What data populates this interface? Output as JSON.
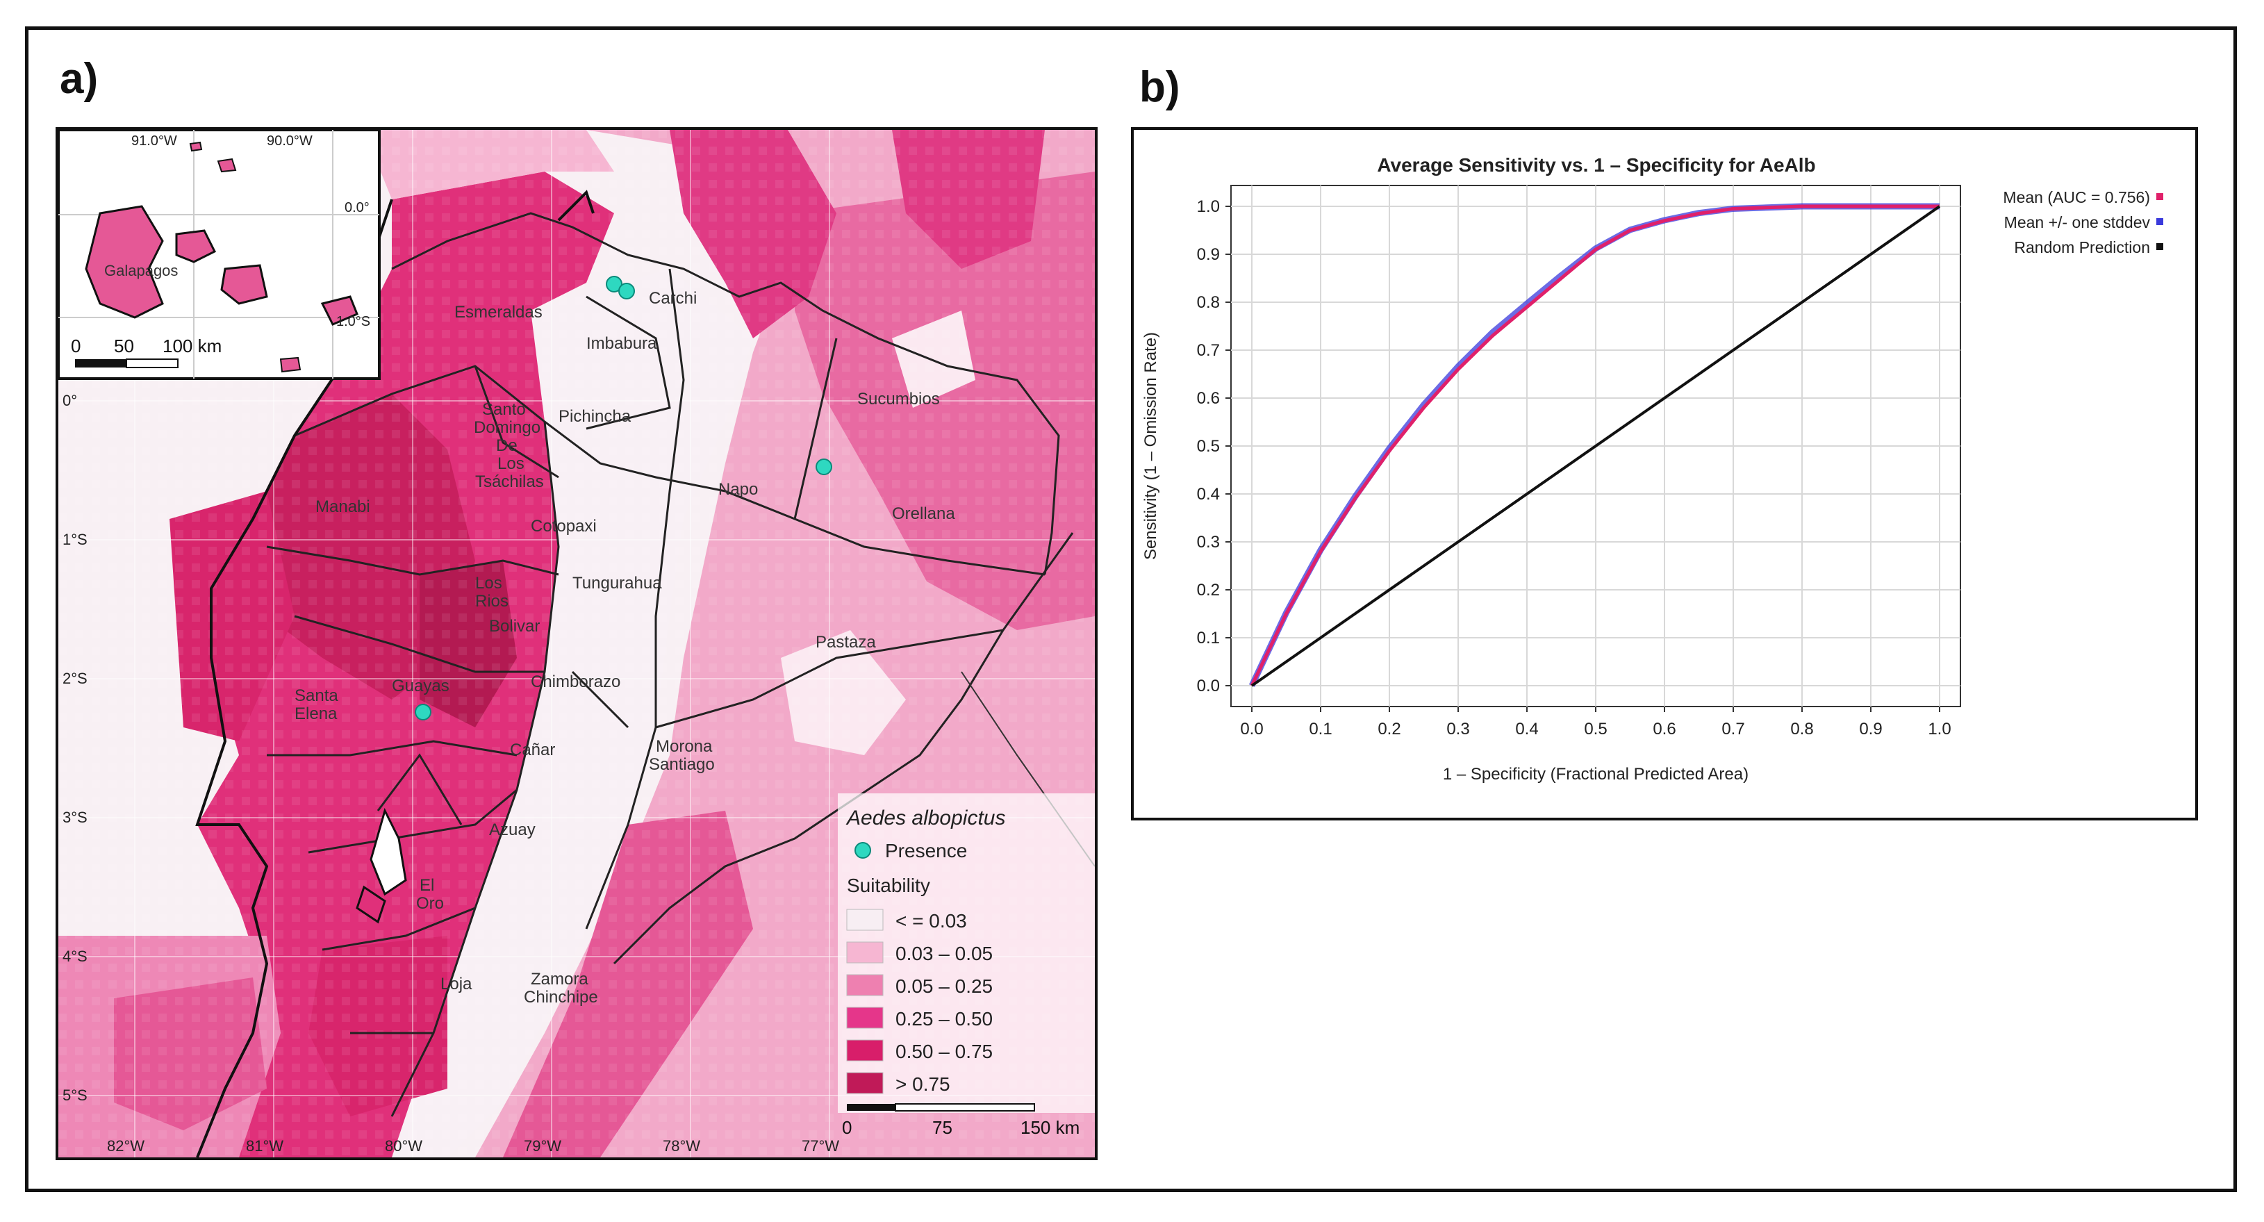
{
  "panels": {
    "a_label": "a)",
    "b_label": "b)"
  },
  "map": {
    "inset": {
      "lon_labels": [
        "91.0°W",
        "90.0°W"
      ],
      "lat_labels": [
        "0.0°",
        "1.0°S"
      ],
      "place": "Galapagos",
      "scale": [
        "0",
        "50",
        "100 km"
      ]
    },
    "lat_labels": [
      "0°",
      "1°S",
      "2°S",
      "3°S",
      "4°S",
      "5°S"
    ],
    "lon_labels": [
      "82°W",
      "81°W",
      "80°W",
      "79°W",
      "78°W",
      "77°W"
    ],
    "provinces": [
      "Esmeraldas",
      "Carchi",
      "Imbabura",
      "Sucumbios",
      "Pichincha",
      "Santo",
      "Domingo",
      "De",
      "Los",
      "Tsáchilas",
      "Manabi",
      "Napo",
      "Orellana",
      "Cotopaxi",
      "Tungurahua",
      "Los",
      "Rios",
      "Bolivar",
      "Pastaza",
      "Santa",
      "Elena",
      "Guayas",
      "Chimborazo",
      "Cañar",
      "Morona",
      "Santiago",
      "Azuay",
      "El",
      "Oro",
      "Loja",
      "Zamora",
      "Chinchipe"
    ],
    "legend": {
      "species": "Aedes albopictus",
      "presence_label": "Presence",
      "suitability_title": "Suitability",
      "classes": [
        {
          "label": "< = 0.03",
          "color": "#f7eef3"
        },
        {
          "label": "0.03  –  0.05",
          "color": "#f6b6d2"
        },
        {
          "label": "0.05  –  0.25",
          "color": "#ee80b0"
        },
        {
          "label": "0.25  –  0.50",
          "color": "#e5368a"
        },
        {
          "label": "0.50  –  0.75",
          "color": "#d81e6a"
        },
        {
          "label": "> 0.75",
          "color": "#c01a58"
        }
      ],
      "presence_color": "#2ed8c0"
    },
    "scale": [
      "0",
      "75",
      "150 km"
    ]
  },
  "chart_data": {
    "type": "line",
    "title": "Average Sensitivity vs. 1 – Specificity for AeAlb",
    "xlabel": "1 – Specificity (Fractional Predicted Area)",
    "ylabel": "Sensitivity (1 – Omission Rate)",
    "xlim": [
      0,
      1
    ],
    "ylim": [
      0,
      1
    ],
    "x_ticks": [
      "0.0",
      "0.1",
      "0.2",
      "0.3",
      "0.4",
      "0.5",
      "0.6",
      "0.7",
      "0.8",
      "0.9",
      "1.0"
    ],
    "y_ticks": [
      "0.0",
      "0.1",
      "0.2",
      "0.3",
      "0.4",
      "0.5",
      "0.6",
      "0.7",
      "0.8",
      "0.9",
      "1.0"
    ],
    "grid": true,
    "legend_position": "right",
    "series": [
      {
        "name": "Mean (AUC = 0.756)",
        "color": "#e0206a",
        "x": [
          0,
          0.05,
          0.1,
          0.15,
          0.2,
          0.25,
          0.3,
          0.35,
          0.4,
          0.45,
          0.5,
          0.55,
          0.6,
          0.65,
          0.7,
          0.8,
          0.9,
          1.0
        ],
        "y": [
          0,
          0.15,
          0.28,
          0.39,
          0.49,
          0.58,
          0.66,
          0.73,
          0.79,
          0.85,
          0.91,
          0.95,
          0.97,
          0.985,
          0.995,
          1.0,
          1.0,
          1.0
        ]
      },
      {
        "name": "Mean +/- one stddev",
        "color": "#3a3adc",
        "x": [
          0,
          0.05,
          0.1,
          0.15,
          0.2,
          0.25,
          0.3,
          0.35,
          0.4,
          0.45,
          0.5,
          0.55,
          0.6,
          0.65,
          0.7,
          0.8,
          0.9,
          1.0
        ],
        "y": [
          0,
          0.152,
          0.283,
          0.394,
          0.495,
          0.586,
          0.666,
          0.737,
          0.797,
          0.856,
          0.912,
          0.951,
          0.971,
          0.986,
          0.995,
          1.0,
          1.0,
          1.0
        ]
      },
      {
        "name": "Random Prediction",
        "color": "#111111",
        "x": [
          0,
          1
        ],
        "y": [
          0,
          1
        ]
      }
    ]
  }
}
